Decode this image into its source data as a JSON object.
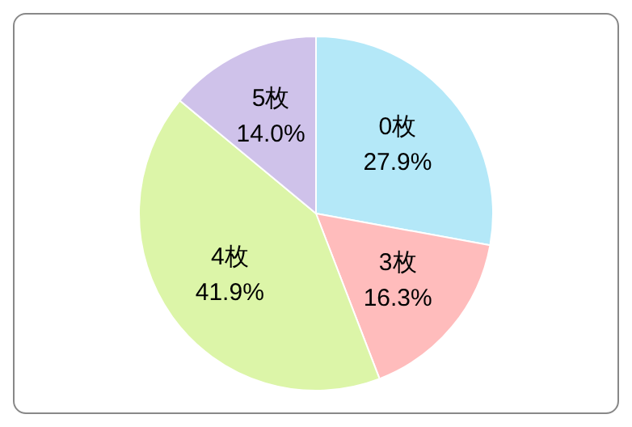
{
  "chart_data": {
    "type": "pie",
    "categories": [
      "0枚",
      "3枚",
      "4枚",
      "5枚"
    ],
    "values": [
      27.9,
      16.3,
      41.9,
      14.0
    ],
    "value_labels": [
      "27.9%",
      "16.3%",
      "41.9%",
      "14.0%"
    ],
    "colors": [
      "#b4e8f8",
      "#ffbcbc",
      "#dcf5a8",
      "#cfc2ea"
    ]
  }
}
